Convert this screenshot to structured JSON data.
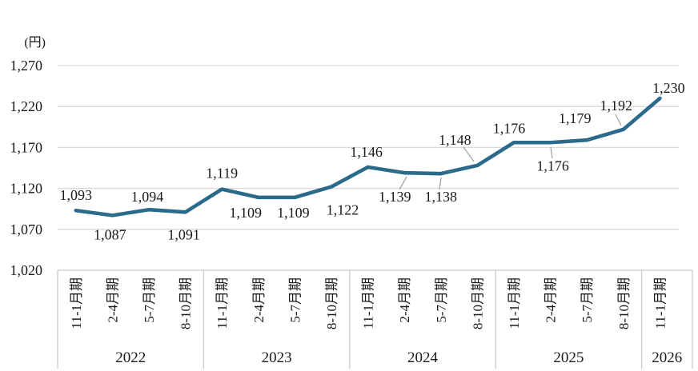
{
  "chart_data": {
    "type": "line",
    "unit_label": "(円)",
    "y_axis": {
      "min": 1020,
      "max": 1270,
      "tick_interval": 50,
      "ticks": [
        1270,
        1220,
        1170,
        1120,
        1070,
        1020
      ],
      "tick_labels": [
        "1,270",
        "1,220",
        "1,170",
        "1,120",
        "1,070",
        "1,020"
      ]
    },
    "x_axis": {
      "groups": [
        {
          "year": "2022",
          "periods": [
            "11-1月期",
            "2-4月期",
            "5-7月期",
            "8-10月期"
          ]
        },
        {
          "year": "2023",
          "periods": [
            "11-1月期",
            "2-4月期",
            "5-7月期",
            "8-10月期"
          ]
        },
        {
          "year": "2024",
          "periods": [
            "11-1月期",
            "2-4月期",
            "5-7月期",
            "8-10月期"
          ]
        },
        {
          "year": "2025",
          "periods": [
            "11-1月期",
            "2-4月期",
            "5-7月期",
            "8-10月期"
          ]
        },
        {
          "year": "2026",
          "periods": [
            "11-1月期"
          ]
        }
      ]
    },
    "series": [
      {
        "name": "",
        "values": [
          1093,
          1087,
          1094,
          1091,
          1119,
          1109,
          1109,
          1122,
          1146,
          1139,
          1138,
          1148,
          1176,
          1176,
          1179,
          1192,
          1230
        ]
      }
    ],
    "data_labels": [
      "1,093",
      "1,087",
      "1,094",
      "1,091",
      "1,119",
      "1,109",
      "1,109",
      "1,122",
      "1,146",
      "1,139",
      "1,138",
      "1,148",
      "1,176",
      "1,176",
      "1,179",
      "1,192",
      "1,230"
    ],
    "layout": {
      "grid": "horizontal",
      "legend": "none",
      "ylim": [
        1020,
        1270
      ]
    },
    "colors": {
      "line": "#2b6a8b",
      "gridline": "#d9d9d9",
      "band_border": "#c9c9c9",
      "leader": "#a6a6a6",
      "text": "#1a1a1a"
    }
  }
}
